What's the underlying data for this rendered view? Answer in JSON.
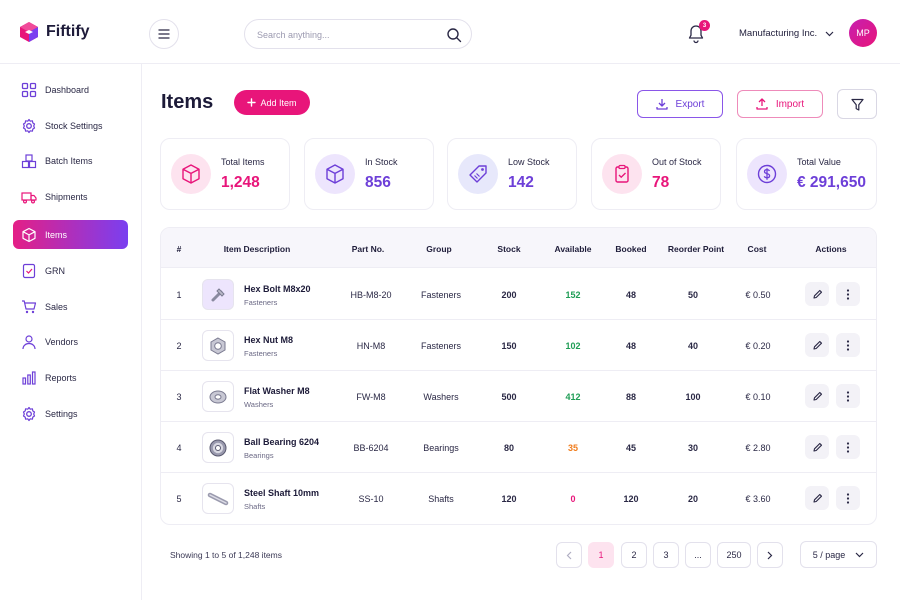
{
  "app": {
    "name": "Fiftify"
  },
  "search": {
    "placeholder": "Search anything..."
  },
  "notifications": {
    "count": "3"
  },
  "org": {
    "name": "Manufacturing Inc."
  },
  "user": {
    "initials": "MP"
  },
  "sidebar": {
    "items": [
      {
        "label": "Dashboard",
        "icon": "grid-icon"
      },
      {
        "label": "Stock Settings",
        "icon": "gear-icon"
      },
      {
        "label": "Batch Items",
        "icon": "boxes-icon"
      },
      {
        "label": "Shipments",
        "icon": "truck-icon"
      },
      {
        "label": "Items",
        "icon": "cube-icon",
        "active": true
      },
      {
        "label": "GRN",
        "icon": "receipt-icon"
      },
      {
        "label": "Sales",
        "icon": "cart-icon"
      },
      {
        "label": "Vendors",
        "icon": "user-icon"
      },
      {
        "label": "Reports",
        "icon": "bar-chart-icon"
      },
      {
        "label": "Settings",
        "icon": "gear-icon"
      }
    ]
  },
  "page": {
    "title": "Items",
    "add_label": "Add Item",
    "export_label": "Export",
    "import_label": "Import"
  },
  "stats": [
    {
      "label": "Total Items",
      "value": "1,248",
      "color": "#e8157a"
    },
    {
      "label": "In Stock",
      "value": "856",
      "color": "#6d3fd8"
    },
    {
      "label": "Low Stock",
      "value": "142",
      "color": "#6d3fd8"
    },
    {
      "label": "Out of Stock",
      "value": "78",
      "color": "#e8157a"
    },
    {
      "label": "Total Value",
      "value": "€ 291,650",
      "color": "#6d3fd8"
    }
  ],
  "table": {
    "headers": [
      "#",
      "Item Description",
      "Part No.",
      "Group",
      "Stock",
      "Available",
      "Booked",
      "Reorder Point",
      "Cost",
      "Actions"
    ],
    "rows": [
      {
        "num": "1",
        "name": "Hex Bolt M8x20",
        "group": "Fasteners",
        "part": "HB-M8-20",
        "stock": "200",
        "available": "152",
        "available_color": "#1f9d55",
        "booked": "48",
        "reorder": "50",
        "cost": "€ 0.50",
        "thumb": "bolt-icon"
      },
      {
        "num": "2",
        "name": "Hex Nut M8",
        "group": "Fasteners",
        "part": "HN-M8",
        "stock": "150",
        "available": "102",
        "available_color": "#1f9d55",
        "booked": "48",
        "reorder": "40",
        "cost": "€ 0.20",
        "thumb": "nut-icon"
      },
      {
        "num": "3",
        "name": "Flat Washer M8",
        "group": "Washers",
        "part": "FW-M8",
        "stock": "500",
        "available": "412",
        "available_color": "#1f9d55",
        "booked": "88",
        "reorder": "100",
        "cost": "€ 0.10",
        "thumb": "washer-icon"
      },
      {
        "num": "4",
        "name": "Ball Bearing 6204",
        "group": "Bearings",
        "part": "BB-6204",
        "stock": "80",
        "available": "35",
        "available_color": "#f07c1c",
        "booked": "45",
        "reorder": "30",
        "cost": "€ 2.80",
        "thumb": "bearing-icon"
      },
      {
        "num": "5",
        "name": "Steel Shaft 10mm",
        "group": "Shafts",
        "part": "SS-10",
        "stock": "120",
        "available": "0",
        "available_color": "#e8157a",
        "booked": "120",
        "reorder": "20",
        "cost": "€ 3.60",
        "thumb": "shaft-icon"
      }
    ]
  },
  "footer": {
    "showing": "Showing 1 to 5 of 1,248 items",
    "pages": [
      "1",
      "2",
      "3",
      "...",
      "250"
    ],
    "per_page": "5 / page"
  }
}
